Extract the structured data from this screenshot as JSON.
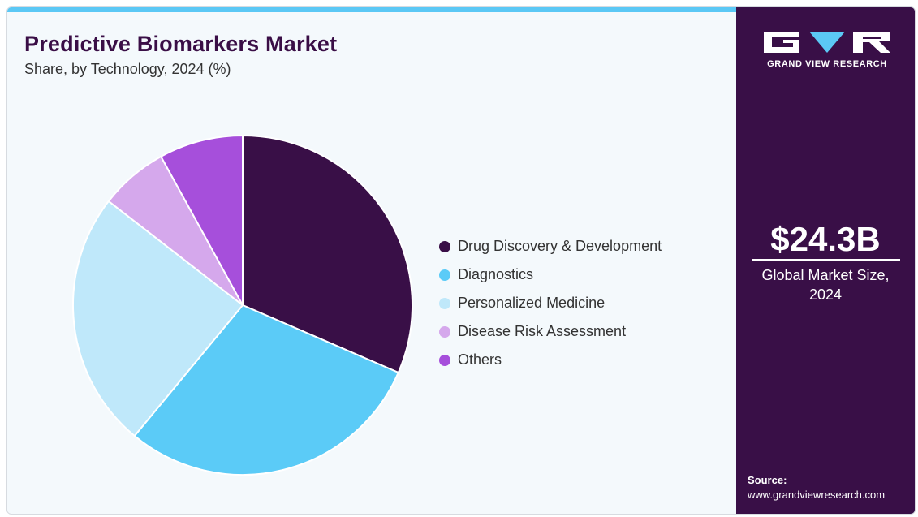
{
  "header": {
    "title": "Predictive Biomarkers Market",
    "subtitle": "Share, by Technology, 2024 (%)"
  },
  "chart_data": {
    "type": "pie",
    "categories": [
      "Drug Discovery & Development",
      "Diagnostics",
      "Personalized Medicine",
      "Disease Risk Assessment",
      "Others"
    ],
    "values": [
      31.5,
      29.5,
      24.5,
      6.5,
      8.0
    ],
    "colors": [
      "#390f47",
      "#5bcbf7",
      "#bfe8fa",
      "#d5a8ec",
      "#a64fdb"
    ],
    "legend_position": "right"
  },
  "sidebar": {
    "logo_text": "GRAND VIEW RESEARCH",
    "market_value": "$24.3B",
    "market_label": "Global Market Size, 2024",
    "source_label": "Source:",
    "source_url": "www.grandviewresearch.com"
  }
}
